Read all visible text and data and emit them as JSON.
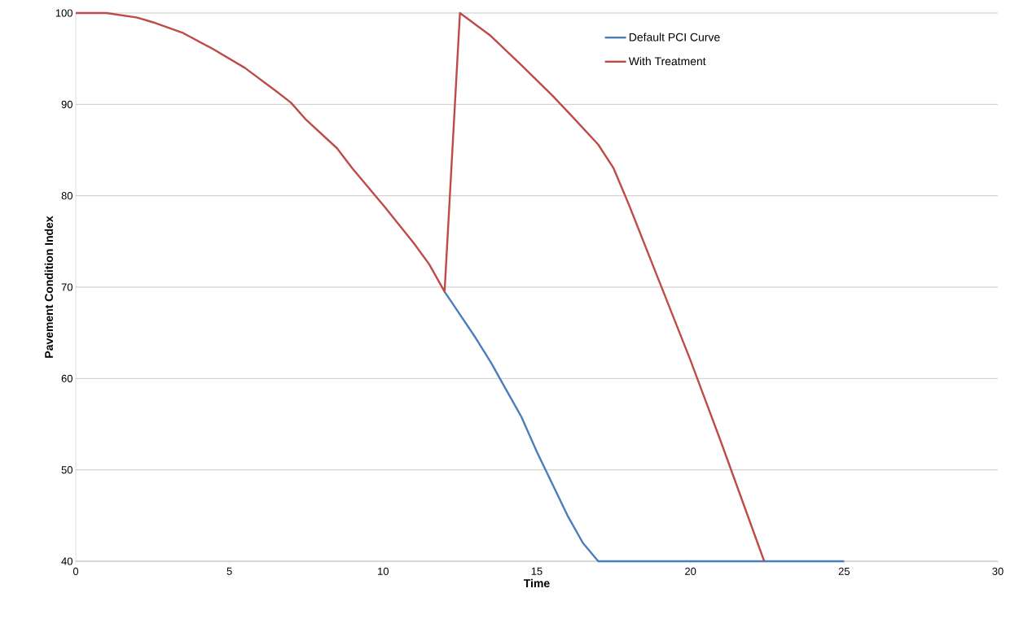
{
  "chart_data": {
    "type": "line",
    "xlabel": "Time",
    "ylabel": "Pavement Condition Index",
    "xlim": [
      0,
      30
    ],
    "ylim": [
      40,
      100
    ],
    "xticks": [
      0,
      5,
      10,
      15,
      20,
      25,
      30
    ],
    "yticks": [
      40,
      50,
      60,
      70,
      80,
      90,
      100
    ],
    "grid": "y",
    "legend": "top right",
    "marker": "none",
    "line_style": "solid",
    "series": [
      {
        "name": "Default PCI Curve",
        "color": "#4a7ebb",
        "x": [
          12,
          12.5,
          13,
          13.5,
          14,
          14.5,
          15,
          15.5,
          16,
          16.5,
          17,
          25
        ],
        "values": [
          69.5,
          67,
          64.5,
          61.8,
          58.8,
          55.8,
          52,
          48.5,
          45,
          42,
          40,
          40
        ]
      },
      {
        "name": "With Treatment",
        "color": "#be4b48",
        "x": [
          0,
          1,
          2,
          2.5,
          3.5,
          4.5,
          5.5,
          6.5,
          7,
          7.5,
          8.5,
          9,
          10,
          11,
          11.5,
          12,
          12.5,
          13.5,
          14.5,
          15.5,
          16.2,
          17,
          17.5,
          18,
          19,
          20,
          21,
          22.4
        ],
        "values": [
          100,
          100,
          99.5,
          99,
          97.8,
          96,
          94,
          91.5,
          90.2,
          88.3,
          85.2,
          83,
          79,
          74.8,
          72.5,
          69.5,
          100,
          97.5,
          94.3,
          91,
          88.5,
          85.6,
          83,
          79,
          70.5,
          62,
          53,
          40
        ]
      }
    ]
  }
}
